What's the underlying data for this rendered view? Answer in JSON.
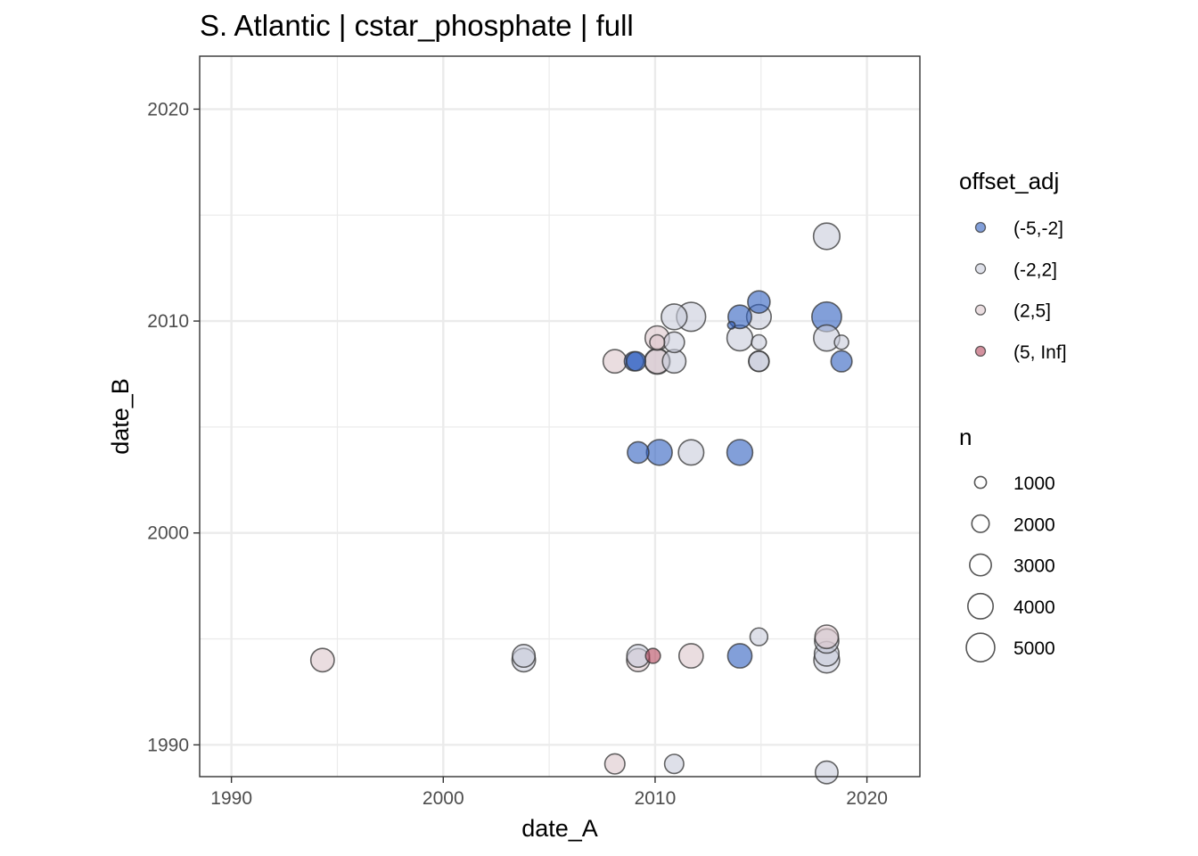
{
  "chart_data": {
    "type": "scatter",
    "title": "S. Atlantic | cstar_phosphate | full",
    "xlabel": "date_A",
    "ylabel": "date_B",
    "xlim": [
      1988.5,
      2022.5
    ],
    "ylim": [
      1988.5,
      2022.5
    ],
    "x_ticks": [
      1990,
      2000,
      2010,
      2020
    ],
    "y_ticks": [
      1990,
      2000,
      2010,
      2020
    ],
    "x_tick_labels": [
      "1990",
      "2000",
      "2010",
      "2020"
    ],
    "y_tick_labels": [
      "1990",
      "2000",
      "2010",
      "2020"
    ],
    "grid": true,
    "legend_color": {
      "title": "offset_adj",
      "entries": [
        {
          "label": "(-5,-2]",
          "color": "#2f5fbf"
        },
        {
          "label": "(-2,2]",
          "color": "#c8ccdb"
        },
        {
          "label": "(2,5]",
          "color": "#dcc6cc"
        },
        {
          "label": "(5, Inf]",
          "color": "#b5475e"
        }
      ]
    },
    "legend_size": {
      "title": "n",
      "entries": [
        {
          "label": "1000",
          "value": 1000
        },
        {
          "label": "2000",
          "value": 2000
        },
        {
          "label": "3000",
          "value": 3000
        },
        {
          "label": "4000",
          "value": 4000
        },
        {
          "label": "5000",
          "value": 5000
        }
      ]
    },
    "points": [
      {
        "x": 1994.3,
        "y": 1994.0,
        "n": 3000,
        "cat": "(2,5]"
      },
      {
        "x": 2003.8,
        "y": 1994.2,
        "n": 2800,
        "cat": "(-2,2]"
      },
      {
        "x": 2003.8,
        "y": 1994.0,
        "n": 3000,
        "cat": "(-2,2]"
      },
      {
        "x": 2009.2,
        "y": 1994.2,
        "n": 2800,
        "cat": "(-2,2]"
      },
      {
        "x": 2009.2,
        "y": 1994.0,
        "n": 2900,
        "cat": "(2,5]"
      },
      {
        "x": 2009.9,
        "y": 1994.2,
        "n": 1200,
        "cat": "(5, Inf]"
      },
      {
        "x": 2011.7,
        "y": 1994.2,
        "n": 3200,
        "cat": "(2,5]"
      },
      {
        "x": 2014.0,
        "y": 1994.2,
        "n": 3200,
        "cat": "(-5,-2]"
      },
      {
        "x": 2014.9,
        "y": 1995.1,
        "n": 1700,
        "cat": "(-2,2]"
      },
      {
        "x": 2018.1,
        "y": 1995.1,
        "n": 3000,
        "cat": "(2,5]"
      },
      {
        "x": 2018.1,
        "y": 1994.9,
        "n": 3200,
        "cat": "(-2,2]"
      },
      {
        "x": 2018.1,
        "y": 1994.3,
        "n": 3300,
        "cat": "(-2,2]"
      },
      {
        "x": 2018.1,
        "y": 1994.0,
        "n": 3600,
        "cat": "(-2,2]"
      },
      {
        "x": 2008.1,
        "y": 1989.1,
        "n": 2200,
        "cat": "(2,5]"
      },
      {
        "x": 2010.9,
        "y": 1989.1,
        "n": 2000,
        "cat": "(-2,2]"
      },
      {
        "x": 2018.1,
        "y": 1988.7,
        "n": 2800,
        "cat": "(-2,2]"
      },
      {
        "x": 2009.2,
        "y": 2003.8,
        "n": 2500,
        "cat": "(-5,-2]"
      },
      {
        "x": 2010.2,
        "y": 2003.8,
        "n": 3600,
        "cat": "(-5,-2]"
      },
      {
        "x": 2011.7,
        "y": 2003.8,
        "n": 3500,
        "cat": "(-2,2]"
      },
      {
        "x": 2014.0,
        "y": 2003.8,
        "n": 3600,
        "cat": "(-5,-2]"
      },
      {
        "x": 2008.1,
        "y": 2008.1,
        "n": 3000,
        "cat": "(2,5]"
      },
      {
        "x": 2009.0,
        "y": 2008.1,
        "n": 2000,
        "cat": "(-5,-2]"
      },
      {
        "x": 2009.1,
        "y": 2008.1,
        "n": 2000,
        "cat": "(-5,-2]"
      },
      {
        "x": 2010.1,
        "y": 2008.1,
        "n": 3600,
        "cat": "(-2,2]"
      },
      {
        "x": 2010.1,
        "y": 2008.1,
        "n": 3300,
        "cat": "(2,5]"
      },
      {
        "x": 2010.9,
        "y": 2008.1,
        "n": 3000,
        "cat": "(-2,2]"
      },
      {
        "x": 2010.1,
        "y": 2009.0,
        "n": 1200,
        "cat": "(2,5]"
      },
      {
        "x": 2010.1,
        "y": 2009.2,
        "n": 3200,
        "cat": "(2,5]"
      },
      {
        "x": 2010.9,
        "y": 2009.0,
        "n": 2300,
        "cat": "(-2,2]"
      },
      {
        "x": 2010.9,
        "y": 2010.2,
        "n": 3600,
        "cat": "(-2,2]"
      },
      {
        "x": 2011.7,
        "y": 2010.2,
        "n": 4600,
        "cat": "(-2,2]"
      },
      {
        "x": 2013.6,
        "y": 2009.8,
        "n": 300,
        "cat": "(-5,-2]"
      },
      {
        "x": 2014.0,
        "y": 2009.2,
        "n": 3600,
        "cat": "(-2,2]"
      },
      {
        "x": 2014.0,
        "y": 2010.2,
        "n": 3000,
        "cat": "(-5,-2]"
      },
      {
        "x": 2014.9,
        "y": 2010.9,
        "n": 2700,
        "cat": "(-5,-2]"
      },
      {
        "x": 2014.9,
        "y": 2010.2,
        "n": 3300,
        "cat": "(-2,2]"
      },
      {
        "x": 2014.9,
        "y": 2009.0,
        "n": 1200,
        "cat": "(-2,2]"
      },
      {
        "x": 2014.9,
        "y": 2008.1,
        "n": 2300,
        "cat": "(-2,2]"
      },
      {
        "x": 2014.9,
        "y": 2008.1,
        "n": 2200,
        "cat": "(-2,2]"
      },
      {
        "x": 2018.1,
        "y": 2010.2,
        "n": 4800,
        "cat": "(-5,-2]"
      },
      {
        "x": 2018.1,
        "y": 2009.2,
        "n": 3700,
        "cat": "(-2,2]"
      },
      {
        "x": 2018.1,
        "y": 2014.0,
        "n": 3800,
        "cat": "(-2,2]"
      },
      {
        "x": 2018.8,
        "y": 2009.0,
        "n": 1100,
        "cat": "(-2,2]"
      },
      {
        "x": 2018.8,
        "y": 2008.1,
        "n": 2400,
        "cat": "(-5,-2]"
      }
    ]
  }
}
